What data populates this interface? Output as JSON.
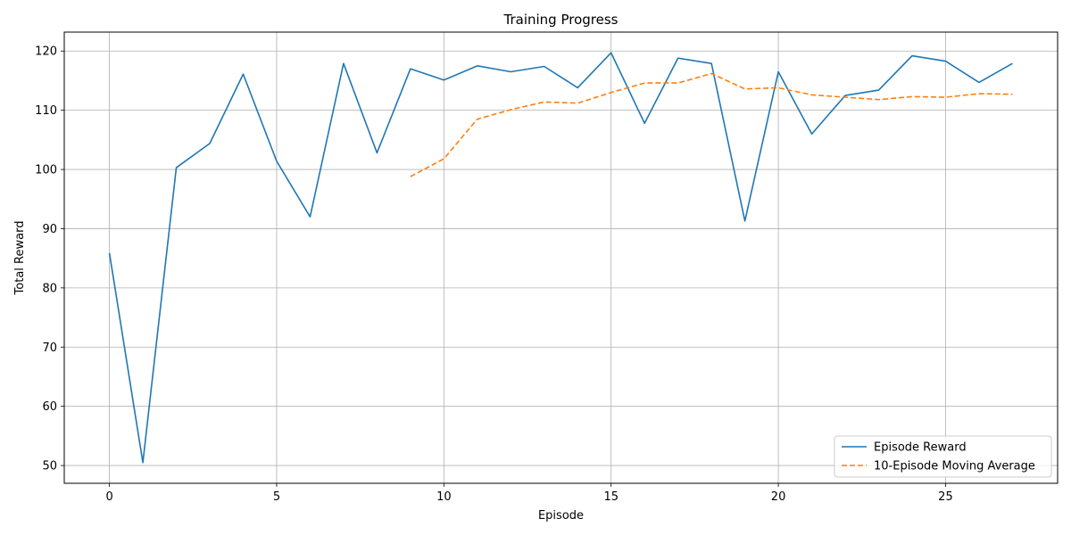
{
  "chart_data": {
    "type": "line",
    "title": "Training Progress",
    "xlabel": "Episode",
    "ylabel": "Total Reward",
    "xlim": [
      -1.35,
      28.35
    ],
    "ylim": [
      47,
      123.2
    ],
    "xticks": [
      0,
      5,
      10,
      15,
      20,
      25
    ],
    "yticks": [
      50,
      60,
      70,
      80,
      90,
      100,
      110,
      120
    ],
    "grid": true,
    "legend_position": "lower-right",
    "series": [
      {
        "name": "Episode Reward",
        "color": "#1f77b4",
        "style": "solid",
        "x": [
          0,
          1,
          2,
          3,
          4,
          5,
          6,
          7,
          8,
          9,
          10,
          11,
          12,
          13,
          14,
          15,
          16,
          17,
          18,
          19,
          20,
          21,
          22,
          23,
          24,
          25,
          26,
          27
        ],
        "values": [
          85.9,
          50.5,
          100.3,
          104.4,
          116.1,
          101.4,
          92.0,
          117.9,
          102.8,
          117.0,
          115.1,
          117.5,
          116.5,
          117.4,
          113.8,
          119.7,
          107.8,
          118.8,
          117.9,
          91.3,
          116.5,
          106.0,
          112.5,
          113.4,
          119.2,
          118.3,
          114.7,
          117.9
        ]
      },
      {
        "name": "10-Episode Moving Average",
        "color": "#ff7f0e",
        "style": "dashed",
        "x": [
          9,
          10,
          11,
          12,
          13,
          14,
          15,
          16,
          17,
          18,
          19,
          20,
          21,
          22,
          23,
          24,
          25,
          26,
          27
        ],
        "values": [
          98.8,
          101.8,
          108.5,
          110.1,
          111.4,
          111.2,
          113.0,
          114.6,
          114.6,
          116.2,
          113.6,
          113.8,
          112.6,
          112.2,
          111.8,
          112.3,
          112.2,
          112.8,
          112.7
        ]
      }
    ]
  }
}
